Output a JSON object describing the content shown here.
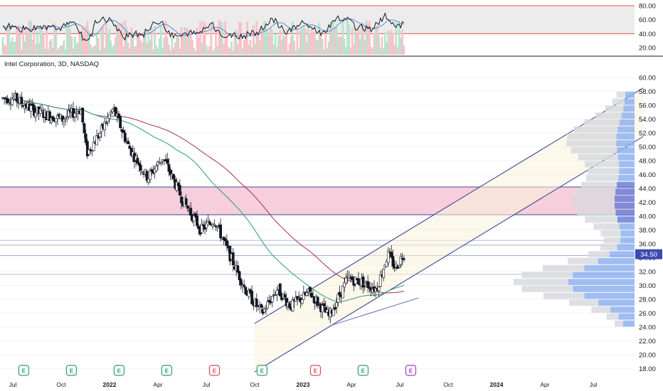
{
  "chart_data": {
    "type": "candlestick",
    "title": "Intel Corporation, 3D, NASDAQ",
    "price_axis": {
      "ticks": [
        "60.00",
        "58.00",
        "56.00",
        "54.00",
        "52.00",
        "50.00",
        "48.00",
        "46.00",
        "44.00",
        "42.00",
        "40.00",
        "38.00",
        "36.00",
        "34.00",
        "32.00",
        "30.00",
        "28.00",
        "26.00",
        "24.00",
        "22.00",
        "20.00",
        "18.00"
      ],
      "range": [
        18,
        61
      ]
    },
    "last_price": "34.50",
    "time_axis": [
      "Jul",
      "Oct",
      "2022",
      "Apr",
      "Jul",
      "Oct",
      "2023",
      "Apr",
      "Jul",
      "Oct",
      "2024",
      "Apr",
      "Jul"
    ],
    "time_axis_bold": [
      "2022",
      "2023",
      "2024"
    ],
    "price_keypoints": [
      {
        "t": 2021.5,
        "p": 57.0
      },
      {
        "t": 2021.62,
        "p": 55.0
      },
      {
        "t": 2021.75,
        "p": 54.0
      },
      {
        "t": 2021.85,
        "p": 55.5
      },
      {
        "t": 2021.88,
        "p": 49.0
      },
      {
        "t": 2021.95,
        "p": 52.0
      },
      {
        "t": 2022.02,
        "p": 55.5
      },
      {
        "t": 2022.1,
        "p": 50.0
      },
      {
        "t": 2022.2,
        "p": 45.5
      },
      {
        "t": 2022.28,
        "p": 48.5
      },
      {
        "t": 2022.38,
        "p": 42.5
      },
      {
        "t": 2022.48,
        "p": 38.0
      },
      {
        "t": 2022.55,
        "p": 39.5
      },
      {
        "t": 2022.62,
        "p": 35.0
      },
      {
        "t": 2022.72,
        "p": 29.0
      },
      {
        "t": 2022.8,
        "p": 26.0
      },
      {
        "t": 2022.88,
        "p": 29.5
      },
      {
        "t": 2022.95,
        "p": 27.0
      },
      {
        "t": 2023.05,
        "p": 29.0
      },
      {
        "t": 2023.15,
        "p": 25.5
      },
      {
        "t": 2023.25,
        "p": 31.0
      },
      {
        "t": 2023.32,
        "p": 30.5
      },
      {
        "t": 2023.4,
        "p": 29.5
      },
      {
        "t": 2023.46,
        "p": 34.5
      },
      {
        "t": 2023.5,
        "p": 32.5
      },
      {
        "t": 2023.54,
        "p": 34.5
      }
    ],
    "moving_averages": [
      {
        "color": "#2a9d73",
        "kind": "fast"
      },
      {
        "color": "#a3324a",
        "kind": "slow"
      }
    ],
    "rsi_pane": {
      "ticks": [
        "80.00",
        "60.00",
        "40.00",
        "20.00"
      ],
      "range": [
        10,
        86
      ],
      "upper": 80,
      "lower": 40
    },
    "horizontal_levels": [
      36.5,
      35.8,
      34.3,
      31.6
    ],
    "resistance_zone": [
      40.2,
      44.2
    ],
    "channel": {
      "lower_start": {
        "t": 2022.76,
        "p": 17.5
      },
      "lower_end": {
        "t": 2024.8,
        "p": 51.5
      },
      "upper_start": {
        "t": 2022.76,
        "p": 24.5
      },
      "upper_end": {
        "t": 2024.8,
        "p": 58.5
      }
    },
    "events": [
      {
        "t": 2021.55,
        "label": "E",
        "color": "#2a9d73"
      },
      {
        "t": 2021.8,
        "label": "E",
        "color": "#2a9d73"
      },
      {
        "t": 2022.05,
        "label": "E",
        "color": "#2a9d73"
      },
      {
        "t": 2022.3,
        "label": "E",
        "color": "#2a9d73"
      },
      {
        "t": 2022.55,
        "label": "E",
        "color": "#d94c5f"
      },
      {
        "t": 2022.8,
        "label": "E",
        "color": "#2a9d73"
      },
      {
        "t": 2023.08,
        "label": "E",
        "color": "#d94c5f"
      },
      {
        "t": 2023.33,
        "label": "E",
        "color": "#2a9d73"
      },
      {
        "t": 2023.58,
        "label": "E",
        "color": "#9b3fc8"
      }
    ],
    "grid": true
  }
}
